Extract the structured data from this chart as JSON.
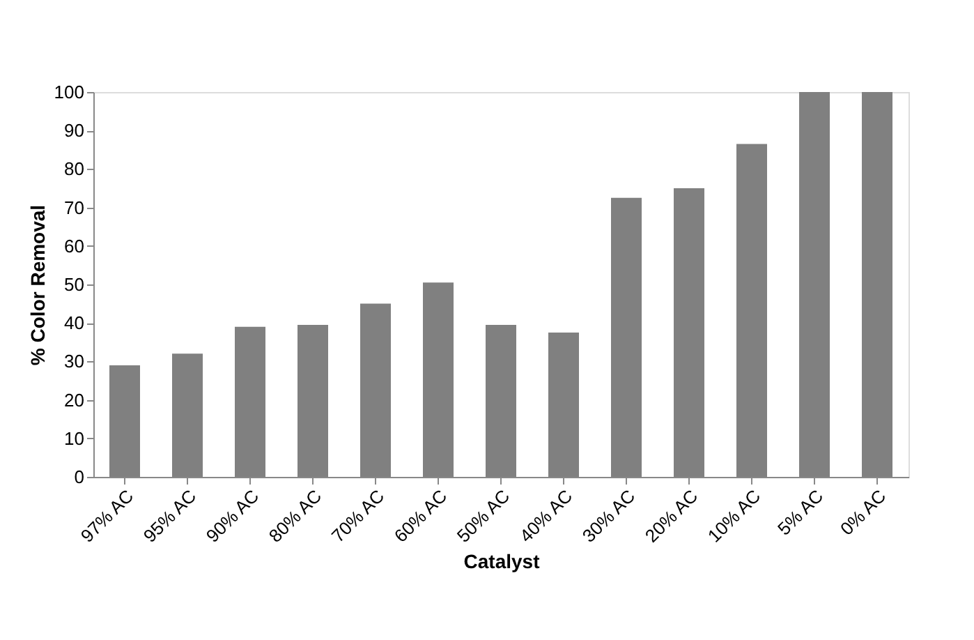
{
  "chart_data": {
    "type": "bar",
    "xlabel": "Catalyst",
    "ylabel": "% Color Removal",
    "categories": [
      "97% AC",
      "95% AC",
      "90% AC",
      "80% AC",
      "70% AC",
      "60% AC",
      "50% AC",
      "40% AC",
      "30% AC",
      "20% AC",
      "10% AC",
      "5% AC",
      "0% AC"
    ],
    "values": [
      29,
      32,
      39,
      39.5,
      45,
      50.5,
      39.5,
      37.5,
      72.5,
      75,
      86.5,
      100,
      100
    ],
    "color": "#808080",
    "ylim": [
      0,
      100
    ],
    "yticks": [
      0,
      10,
      20,
      30,
      40,
      50,
      60,
      70,
      80,
      90,
      100
    ],
    "grid": false
  }
}
